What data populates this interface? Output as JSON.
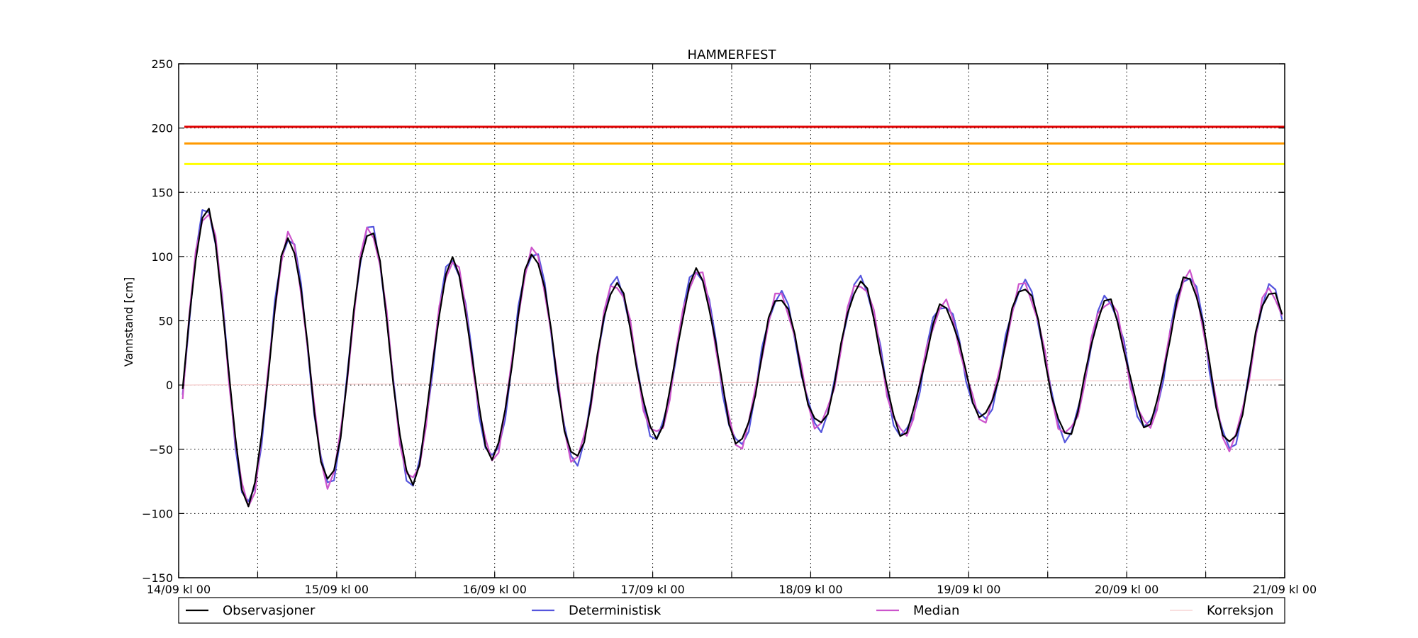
{
  "chart_data": {
    "type": "line",
    "title": "HAMMERFEST",
    "xlabel": "",
    "ylabel": "Vannstand [cm]",
    "ylim": [
      -150,
      250
    ],
    "xlim": [
      0,
      168
    ],
    "x_unit": "hours since 14/09 kl 00",
    "yticks": [
      250,
      200,
      150,
      100,
      50,
      0,
      -50,
      -100,
      -150
    ],
    "ytick_labels": [
      "250",
      "200",
      "150",
      "100",
      "50",
      "0",
      "−50",
      "−100",
      "−150"
    ],
    "xticks": [
      {
        "x": 0,
        "label": "14/09 kl 00"
      },
      {
        "x": 12,
        "label": ""
      },
      {
        "x": 24,
        "label": "15/09 kl 00"
      },
      {
        "x": 36,
        "label": ""
      },
      {
        "x": 48,
        "label": "16/09 kl 00"
      },
      {
        "x": 60,
        "label": ""
      },
      {
        "x": 72,
        "label": "17/09 kl 00"
      },
      {
        "x": 84,
        "label": ""
      },
      {
        "x": 96,
        "label": "18/09 kl 00"
      },
      {
        "x": 108,
        "label": ""
      },
      {
        "x": 120,
        "label": "19/09 kl 00"
      },
      {
        "x": 132,
        "label": ""
      },
      {
        "x": 144,
        "label": "20/09 kl 00"
      },
      {
        "x": 156,
        "label": ""
      },
      {
        "x": 168,
        "label": "21/09 kl 00"
      }
    ],
    "grid": true,
    "legend_position": "below plot, full width",
    "thresholds": [
      {
        "y": 201,
        "color": "#e00000"
      },
      {
        "y": 188,
        "color": "#ff9900"
      },
      {
        "y": 172,
        "color": "#ffff00"
      }
    ],
    "tide": {
      "M2_period_h": 12.42,
      "phase_h": 4.3,
      "mean_cm": 19,
      "amplitude_points_h": [
        0,
        24,
        48,
        72,
        96,
        120,
        144,
        168
      ],
      "amplitude_cm": [
        112,
        99,
        80,
        64,
        56,
        49,
        55,
        63
      ],
      "diurnal_amp_cm": 9,
      "step_h": 1
    },
    "series": [
      {
        "name": "Observasjoner",
        "color": "#000000",
        "width": 2.2,
        "bias": 0,
        "noise": 3
      },
      {
        "name": "Deterministisk",
        "color": "#5555dd",
        "width": 2.2,
        "bias": 2,
        "noise": 4
      },
      {
        "name": "Median",
        "color": "#cc55cc",
        "width": 2.2,
        "bias": 1,
        "noise": 5
      },
      {
        "name": "Korreksjon",
        "color": "#f5cccc",
        "width": 1.2,
        "flat_start": 0,
        "flat_end": 4
      }
    ]
  }
}
